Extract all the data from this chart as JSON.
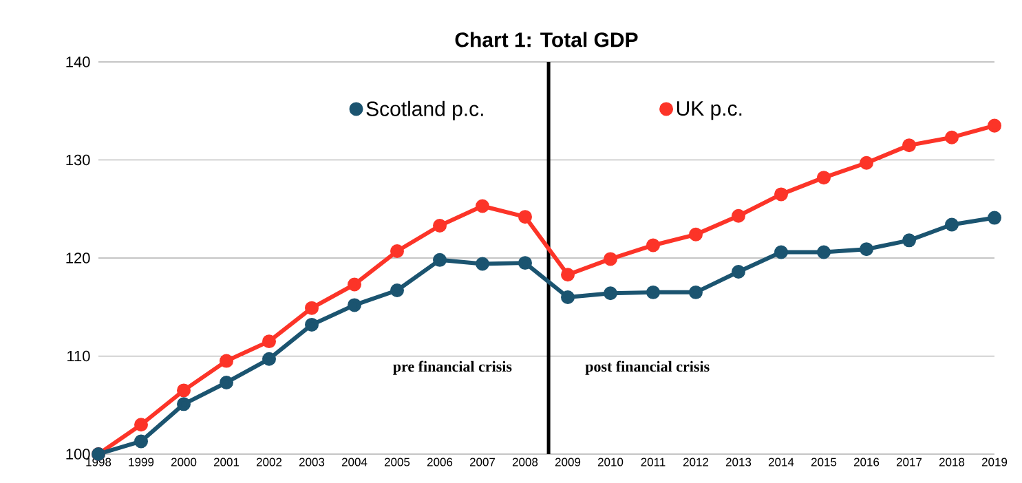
{
  "chart_data": {
    "type": "line",
    "title": "Chart 1: Total GDP",
    "x": [
      1998,
      1999,
      2000,
      2001,
      2002,
      2003,
      2004,
      2005,
      2006,
      2007,
      2008,
      2009,
      2010,
      2011,
      2012,
      2013,
      2014,
      2015,
      2016,
      2017,
      2018,
      2019
    ],
    "series": [
      {
        "name": "Scotland p.c.",
        "color": "#1b5470",
        "values": [
          100,
          101.3,
          105.1,
          107.3,
          109.7,
          113.2,
          115.2,
          116.7,
          119.8,
          119.4,
          119.5,
          116.0,
          116.4,
          116.5,
          116.5,
          118.6,
          120.6,
          120.6,
          120.9,
          121.8,
          123.4,
          124.1
        ]
      },
      {
        "name": "UK p.c.",
        "color": "#fc3428",
        "values": [
          100,
          103.0,
          106.5,
          109.5,
          111.5,
          114.9,
          117.3,
          120.7,
          123.3,
          125.3,
          124.2,
          118.3,
          119.9,
          121.3,
          122.4,
          124.3,
          126.5,
          128.2,
          129.7,
          131.5,
          132.3,
          133.5
        ]
      }
    ],
    "xlim": [
      1998,
      2019
    ],
    "xticks": [
      1998,
      1999,
      2000,
      2001,
      2002,
      2003,
      2004,
      2005,
      2006,
      2007,
      2008,
      2009,
      2010,
      2011,
      2012,
      2013,
      2014,
      2015,
      2016,
      2017,
      2018,
      2019
    ],
    "ylim": [
      100,
      140
    ],
    "yticks": [
      100,
      110,
      120,
      130,
      140
    ],
    "ref_lines": [
      {
        "axis": "x",
        "value": 2008.55,
        "color": "#000000"
      }
    ],
    "annotations": [
      "pre financial crisis",
      "post financial crisis"
    ],
    "grid": "y",
    "legend": "top",
    "marker": "circle",
    "line_style": "solid"
  }
}
